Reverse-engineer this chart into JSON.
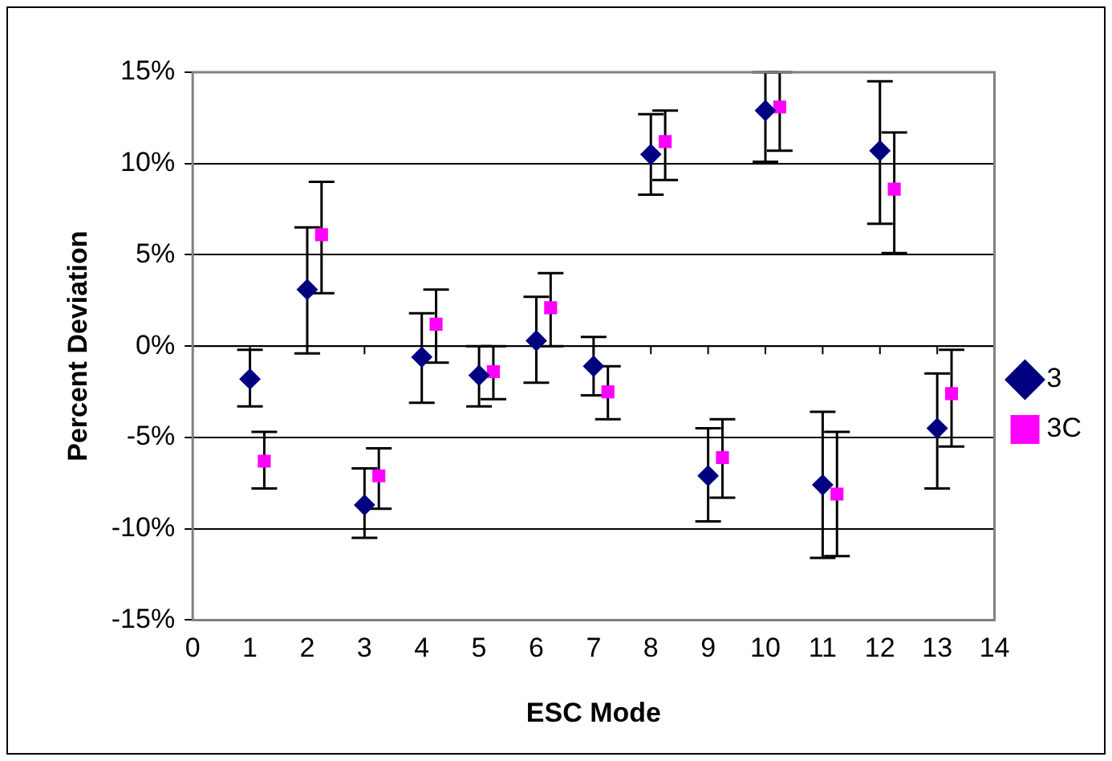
{
  "chart_data": {
    "type": "scatter",
    "xlabel": "ESC Mode",
    "ylabel": "Percent Deviation",
    "xlim": [
      0,
      14
    ],
    "xticks": [
      0,
      1,
      2,
      3,
      4,
      5,
      6,
      7,
      8,
      9,
      10,
      11,
      12,
      13,
      14
    ],
    "ylim": [
      -15,
      15
    ],
    "yticks": [
      {
        "value": -15,
        "label": "-15%"
      },
      {
        "value": -10,
        "label": "-10%"
      },
      {
        "value": -5,
        "label": "-5%"
      },
      {
        "value": 0,
        "label": "0%"
      },
      {
        "value": 5,
        "label": "5%"
      },
      {
        "value": 10,
        "label": "10%"
      },
      {
        "value": 15,
        "label": "15%"
      }
    ],
    "grid": "y",
    "legend": "right",
    "series": [
      {
        "name": "3",
        "color": "#000080",
        "marker": "diamond",
        "x": [
          1,
          2,
          3,
          4,
          5,
          6,
          7,
          8,
          9,
          10,
          11,
          12,
          13
        ],
        "values": [
          -1.8,
          3.1,
          -8.7,
          -0.6,
          -1.6,
          0.3,
          -1.1,
          10.5,
          -7.1,
          12.9,
          -7.6,
          10.7,
          -4.5
        ],
        "errors": [
          [
            -3.3,
            -0.2
          ],
          [
            -0.4,
            6.5
          ],
          [
            -10.5,
            -6.7
          ],
          [
            -3.1,
            1.8
          ],
          [
            -3.3,
            0
          ],
          [
            -2.0,
            2.7
          ],
          [
            -2.7,
            0.5
          ],
          [
            8.3,
            12.7
          ],
          [
            -9.6,
            -4.5
          ],
          [
            10.1,
            15
          ],
          [
            -11.6,
            -3.6
          ],
          [
            6.7,
            14.5
          ],
          [
            -7.8,
            -1.5
          ]
        ]
      },
      {
        "name": "3C",
        "color": "#ff00ff",
        "marker": "square",
        "x": [
          1.25,
          2.25,
          3.25,
          4.25,
          5.25,
          6.25,
          7.25,
          8.25,
          9.25,
          10.25,
          11.25,
          12.25,
          13.25
        ],
        "values": [
          -6.3,
          6.1,
          -7.1,
          1.2,
          -1.4,
          2.1,
          -2.5,
          11.2,
          -6.1,
          13.1,
          -8.1,
          8.6,
          -2.6
        ],
        "errors": [
          [
            -7.8,
            -4.7
          ],
          [
            2.9,
            9.0
          ],
          [
            -8.9,
            -5.6
          ],
          [
            -0.9,
            3.1
          ],
          [
            -2.9,
            0
          ],
          [
            0,
            4.0
          ],
          [
            -4.0,
            -1.1
          ],
          [
            9.1,
            12.9
          ],
          [
            -8.3,
            -4.0
          ],
          [
            10.7,
            15
          ],
          [
            -11.5,
            -4.7
          ],
          [
            5.1,
            11.7
          ],
          [
            -5.5,
            -0.2
          ]
        ]
      }
    ]
  }
}
